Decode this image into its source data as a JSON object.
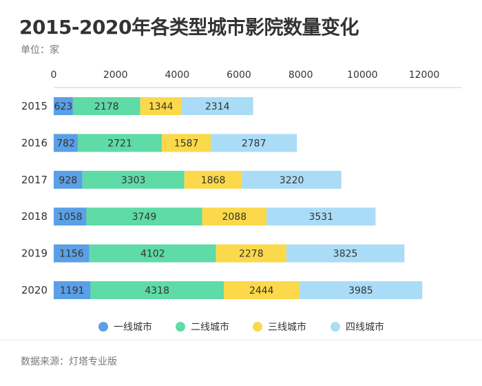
{
  "header": {
    "title": "2015-2020年各类型城市影院数量变化",
    "unit": "单位：家"
  },
  "footer": {
    "source": "数据来源：灯塔专业版"
  },
  "chart_data": {
    "type": "bar",
    "orientation": "horizontal",
    "stacked": true,
    "title": "2015-2020年各类型城市影院数量变化",
    "xlabel": "",
    "ylabel": "",
    "unit": "单位：家",
    "xlim": [
      0,
      13000
    ],
    "xticks": [
      0,
      2000,
      4000,
      6000,
      8000,
      10000,
      12000
    ],
    "categories": [
      "2015",
      "2016",
      "2017",
      "2018",
      "2019",
      "2020"
    ],
    "legend_position": "bottom",
    "series": [
      {
        "name": "一线城市",
        "color": "#5b9fe6",
        "values": [
          623,
          782,
          928,
          1058,
          1156,
          1191
        ]
      },
      {
        "name": "二线城市",
        "color": "#5fdba7",
        "values": [
          2178,
          2721,
          3303,
          3749,
          4102,
          4318
        ]
      },
      {
        "name": "三线城市",
        "color": "#fbd94a",
        "values": [
          1344,
          1587,
          1868,
          2088,
          2278,
          2444
        ]
      },
      {
        "name": "四线城市",
        "color": "#aadcf7",
        "values": [
          2314,
          2787,
          3220,
          3531,
          3825,
          3985
        ]
      }
    ]
  }
}
